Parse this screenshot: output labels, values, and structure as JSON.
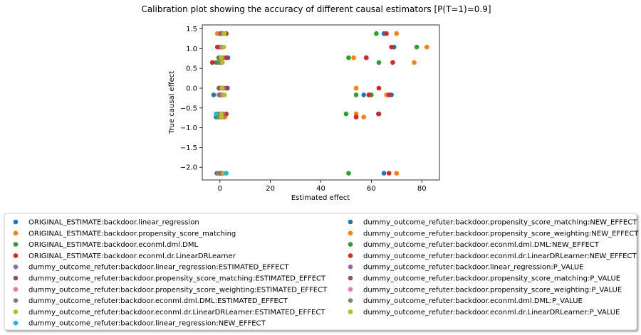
{
  "chart_data": {
    "type": "scatter",
    "title": "Calibration plot showing the accuracy of different causal estimators [P(T=1)=0.9]",
    "xlabel": "Estimated effect",
    "ylabel": "True causal effect",
    "xlim": [
      -7,
      87
    ],
    "ylim": [
      -2.32,
      1.6
    ],
    "xticks": [
      0,
      20,
      40,
      60,
      80
    ],
    "yticks": [
      1.5,
      1.0,
      0.5,
      0.0,
      -0.5,
      -1.0,
      -1.5,
      -2.0
    ],
    "ytick_labels": [
      "1.5",
      "1.0",
      "0.5",
      "0.0",
      "−0.5",
      "−1.0",
      "−1.5",
      "−2.0"
    ],
    "grid": false,
    "legend_position": "bottom",
    "series": [
      {
        "name": "ORIGINAL_ESTIMATE:backdoor.linear_regression",
        "color": "#1f77b4",
        "points": [
          [
            1.0,
            1.38
          ],
          [
            1.0,
            1.04
          ],
          [
            3.2,
            0.77
          ],
          [
            -0.3,
            0.65
          ],
          [
            -0.4,
            0.0
          ],
          [
            -2.5,
            -0.17
          ],
          [
            -1.0,
            -0.65
          ],
          [
            -1.5,
            -0.73
          ],
          [
            -1.2,
            -2.15
          ],
          [
            3.0,
            0.0
          ]
        ]
      },
      {
        "name": "ORIGINAL_ESTIMATE:backdoor.propensity_score_matching",
        "color": "#ff7f0e",
        "points": [
          [
            -1.0,
            1.38
          ],
          [
            1.0,
            1.04
          ],
          [
            1.5,
            0.77
          ],
          [
            -0.5,
            0.65
          ],
          [
            0.5,
            0.0
          ],
          [
            -0.5,
            -0.17
          ],
          [
            1.0,
            -0.65
          ],
          [
            2.0,
            -0.73
          ],
          [
            -0.5,
            -2.15
          ]
        ]
      },
      {
        "name": "ORIGINAL_ESTIMATE:backdoor.econml.dml.DML",
        "color": "#2ca02c",
        "points": [
          [
            0.5,
            1.38
          ],
          [
            0.0,
            1.04
          ],
          [
            -0.5,
            0.77
          ],
          [
            -1.5,
            0.65
          ],
          [
            1.0,
            0.0
          ],
          [
            0.0,
            -0.17
          ],
          [
            0.5,
            -0.65
          ],
          [
            -1.0,
            -0.73
          ],
          [
            0.0,
            -2.15
          ]
        ]
      },
      {
        "name": "ORIGINAL_ESTIMATE:backdoor.econml.dr.LinearDRLearner",
        "color": "#d62728",
        "points": [
          [
            2.5,
            1.38
          ],
          [
            -1.0,
            1.04
          ],
          [
            2.5,
            0.77
          ],
          [
            -3.0,
            0.65
          ],
          [
            2.5,
            0.0
          ],
          [
            1.0,
            -0.17
          ],
          [
            2.5,
            -0.65
          ],
          [
            1.0,
            -0.73
          ],
          [
            0.5,
            -2.15
          ]
        ]
      },
      {
        "name": "dummy_outcome_refuter:backdoor.linear_regression:ESTIMATED_EFFECT",
        "color": "#9467bd",
        "points": [
          [
            0.2,
            1.38
          ],
          [
            0.5,
            1.04
          ],
          [
            0.8,
            0.77
          ],
          [
            0.0,
            0.65
          ],
          [
            0.3,
            0.0
          ],
          [
            0.2,
            -0.17
          ],
          [
            0.3,
            -0.65
          ],
          [
            0.0,
            -0.73
          ],
          [
            0.2,
            -2.15
          ]
        ]
      },
      {
        "name": "dummy_outcome_refuter:backdoor.propensity_score_matching:ESTIMATED_EFFECT",
        "color": "#8c564b",
        "points": [
          [
            0.6,
            1.38
          ],
          [
            0.3,
            1.04
          ],
          [
            0.1,
            0.77
          ],
          [
            0.5,
            0.65
          ],
          [
            -0.2,
            0.0
          ],
          [
            0.6,
            -0.17
          ],
          [
            -0.2,
            -0.65
          ],
          [
            0.4,
            -0.73
          ],
          [
            0.6,
            -2.15
          ]
        ]
      },
      {
        "name": "dummy_outcome_refuter:backdoor.propensity_score_weighting:ESTIMATED_EFFECT",
        "color": "#e377c2",
        "points": [
          [
            1.2,
            1.38
          ],
          [
            0.8,
            1.04
          ],
          [
            0.4,
            0.77
          ],
          [
            0.8,
            0.65
          ],
          [
            0.8,
            0.0
          ],
          [
            1.0,
            -0.17
          ],
          [
            0.8,
            -0.65
          ],
          [
            0.8,
            -0.73
          ],
          [
            1.0,
            -2.15
          ]
        ]
      },
      {
        "name": "dummy_outcome_refuter:backdoor.econml.dml.DML:ESTIMATED_EFFECT",
        "color": "#7f7f7f",
        "points": [
          [
            1.5,
            1.38
          ],
          [
            1.2,
            1.04
          ],
          [
            1.0,
            0.77
          ],
          [
            0.3,
            0.65
          ],
          [
            1.5,
            0.0
          ],
          [
            1.6,
            -0.17
          ],
          [
            1.3,
            -0.65
          ],
          [
            -0.3,
            -0.73
          ],
          [
            1.3,
            -2.15
          ]
        ]
      },
      {
        "name": "dummy_outcome_refuter:backdoor.econml.dr.LinearDRLearner:ESTIMATED_EFFECT",
        "color": "#bcbd22",
        "points": [
          [
            1.8,
            1.38
          ],
          [
            1.5,
            1.04
          ],
          [
            0.5,
            0.77
          ],
          [
            1.0,
            0.65
          ],
          [
            0.8,
            0.0
          ],
          [
            1.8,
            -0.17
          ],
          [
            0.5,
            -0.65
          ],
          [
            0.6,
            -0.73
          ],
          [
            1.6,
            -2.15
          ]
        ]
      },
      {
        "name": "dummy_outcome_refuter:backdoor.linear_regression:NEW_EFFECT",
        "color": "#17becf",
        "points": [
          [
            2.5,
            -2.15
          ],
          [
            -1.5,
            -0.65
          ]
        ]
      },
      {
        "name": "dummy_outcome_refuter:backdoor.propensity_score_matching:NEW_EFFECT",
        "color": "#1f77b4",
        "points": [
          [
            65.0,
            1.38
          ],
          [
            69.0,
            1.04
          ],
          [
            58.0,
            0.77
          ],
          [
            57.0,
            -0.17
          ],
          [
            68.0,
            -0.17
          ],
          [
            62.8,
            -0.65
          ],
          [
            54.0,
            -0.73
          ],
          [
            65.0,
            -2.15
          ]
        ]
      },
      {
        "name": "dummy_outcome_refuter:backdoor.propensity_score_weighting:NEW_EFFECT",
        "color": "#ff7f0e",
        "points": [
          [
            70.0,
            1.38
          ],
          [
            82.0,
            1.04
          ],
          [
            53.0,
            0.77
          ],
          [
            77.0,
            0.65
          ],
          [
            54.0,
            0.0
          ],
          [
            66.0,
            -0.17
          ],
          [
            54.0,
            -0.65
          ],
          [
            57.0,
            -0.73
          ],
          [
            70.0,
            -2.15
          ]
        ]
      },
      {
        "name": "dummy_outcome_refuter:backdoor.econml.dml.DML:NEW_EFFECT",
        "color": "#2ca02c",
        "points": [
          [
            62.0,
            1.38
          ],
          [
            78.0,
            1.04
          ],
          [
            51.0,
            0.77
          ],
          [
            63.0,
            0.65
          ],
          [
            54.0,
            -0.17
          ],
          [
            60.0,
            -0.17
          ],
          [
            50.0,
            -0.65
          ],
          [
            54.0,
            -0.73
          ],
          [
            51.0,
            -2.15
          ]
        ]
      },
      {
        "name": "dummy_outcome_refuter:backdoor.econml.dr.LinearDRLearner:NEW_EFFECT",
        "color": "#d62728",
        "points": [
          [
            66.0,
            1.38
          ],
          [
            68.0,
            1.04
          ],
          [
            58.0,
            0.77
          ],
          [
            68.5,
            0.65
          ],
          [
            63.0,
            0.0
          ],
          [
            59.0,
            -0.17
          ],
          [
            67.0,
            -0.17
          ],
          [
            63.0,
            -0.65
          ],
          [
            54.0,
            -0.73
          ],
          [
            67.0,
            -2.15
          ]
        ]
      },
      {
        "name": "dummy_outcome_refuter:backdoor.linear_regression:P_VALUE",
        "color": "#9467bd",
        "points": []
      },
      {
        "name": "dummy_outcome_refuter:backdoor.propensity_score_matching:P_VALUE",
        "color": "#8c564b",
        "points": []
      },
      {
        "name": "dummy_outcome_refuter:backdoor.propensity_score_weighting:P_VALUE",
        "color": "#e377c2",
        "points": []
      },
      {
        "name": "dummy_outcome_refuter:backdoor.econml.dml.DML:P_VALUE",
        "color": "#7f7f7f",
        "points": []
      },
      {
        "name": "dummy_outcome_refuter:backdoor.econml.dr.LinearDRLearner:P_VALUE",
        "color": "#bcbd22",
        "points": []
      }
    ]
  }
}
